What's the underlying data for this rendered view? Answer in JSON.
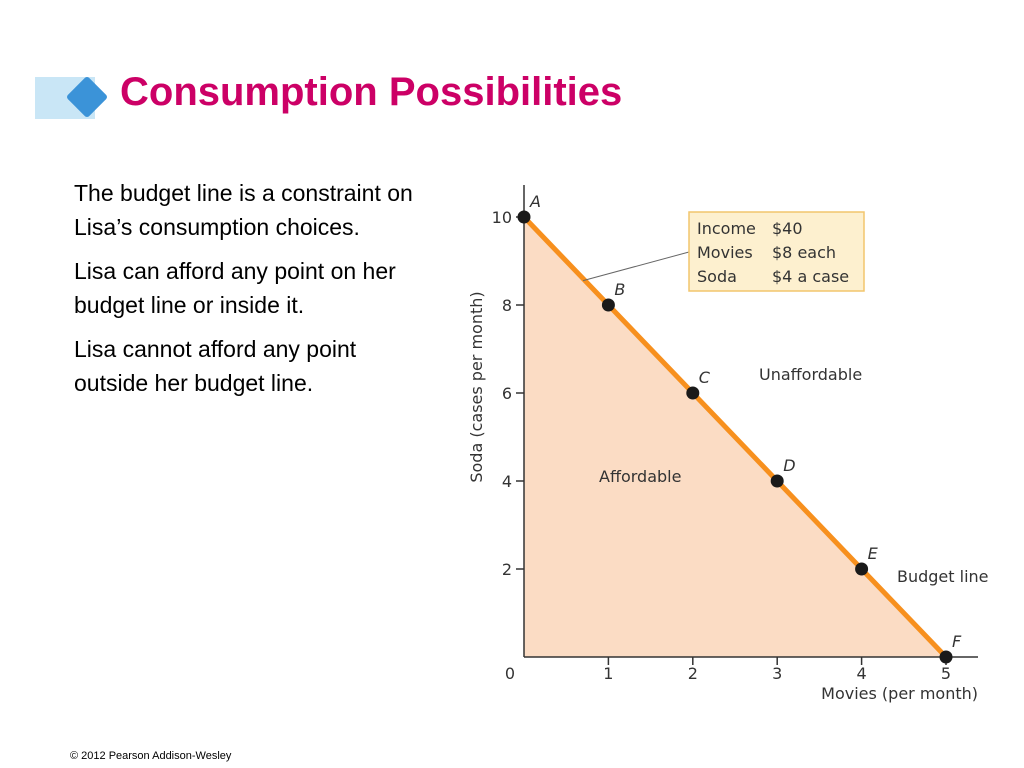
{
  "slide": {
    "title": "Consumption Possibilities",
    "bullets": [
      "The budget line is a constraint on Lisa’s consumption choices.",
      "Lisa can afford any point on her budget line or inside it.",
      "Lisa cannot afford any point outside her budget line."
    ],
    "footer": "© 2012 Pearson Addison-Wesley"
  },
  "colors": {
    "title": "#cc0066",
    "accent_diamond": "#3b93d8",
    "accent_strip": "#c9e6f6",
    "budget_line": "#f7901e",
    "affordable_fill": "#fbdcc4",
    "legend_box_fill": "#fdf0cf",
    "legend_box_border": "#f2c66d"
  },
  "chart_data": {
    "type": "line",
    "xlabel": "Movies (per month)",
    "ylabel": "Soda (cases per month)",
    "xlim": [
      0,
      5
    ],
    "ylim": [
      0,
      10
    ],
    "x_ticks": [
      0,
      1,
      2,
      3,
      4,
      5
    ],
    "y_ticks": [
      2,
      4,
      6,
      8,
      10
    ],
    "grid": false,
    "points": [
      {
        "label": "A",
        "x": 0,
        "y": 10
      },
      {
        "label": "B",
        "x": 1,
        "y": 8
      },
      {
        "label": "C",
        "x": 2,
        "y": 6
      },
      {
        "label": "D",
        "x": 3,
        "y": 4
      },
      {
        "label": "E",
        "x": 4,
        "y": 2
      },
      {
        "label": "F",
        "x": 5,
        "y": 0
      }
    ],
    "info_box": [
      {
        "item": "Income",
        "value": "$40"
      },
      {
        "item": "Movies",
        "value": "$8 each"
      },
      {
        "item": "Soda",
        "value": "$4 a case"
      }
    ],
    "annotations": {
      "affordable": "Affordable",
      "unaffordable": "Unaffordable",
      "budget_line": "Budget line"
    }
  }
}
